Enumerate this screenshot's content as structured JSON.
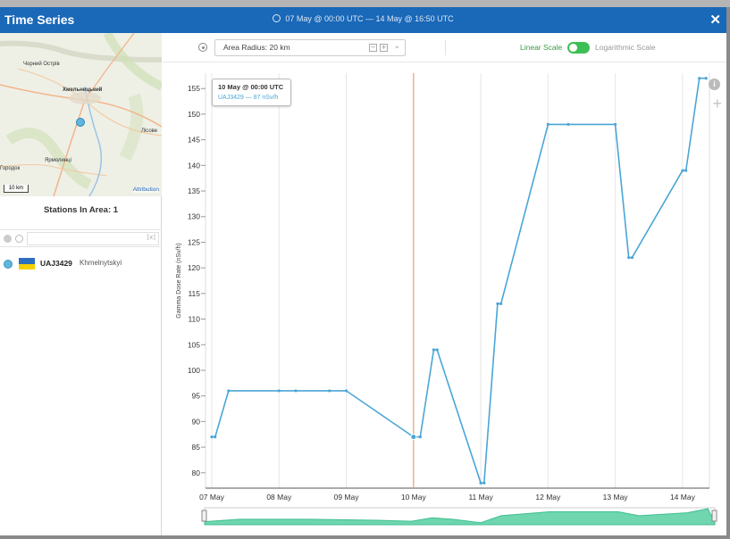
{
  "window": {
    "title": "Time Series",
    "time_range": "07 May @ 00:00 UTC  —  14 May @ 16:50 UTC",
    "close_symbol": "✕"
  },
  "map": {
    "labels": [
      "Чорний Острів",
      "Хмельницький",
      "Лісове",
      "Ярмолинці",
      "Городок"
    ],
    "scale": "10 km",
    "attribution": "Attribution"
  },
  "stations": {
    "title": "Stations In Area: 1",
    "clear_symbol": "[x]",
    "items": [
      {
        "id": "UAJ3429",
        "city": "Khmelnytskyi"
      }
    ]
  },
  "controls": {
    "radius_label": "Area Radius: 20 km",
    "linear_label": "Linear Scale",
    "log_label": "Logarithmic Scale",
    "linear_active": true
  },
  "tooltip": {
    "date": "10 May @ 00:00 UTC",
    "station": "UAJ3429",
    "value": "87 nSv/h"
  },
  "colors": {
    "header": "#1a68b8",
    "series": "#4aa6d6",
    "cursor": "#f0a074",
    "navigator": "#6fd6b0",
    "toggle": "#3ebf55"
  },
  "chart_data": {
    "type": "line",
    "ylabel": "Gamma Dose Rate (nSv/h)",
    "xlabel": "",
    "ylim": [
      77,
      158
    ],
    "yticks": [
      80,
      85,
      90,
      95,
      100,
      105,
      110,
      115,
      120,
      125,
      130,
      135,
      140,
      145,
      150,
      155
    ],
    "xticks": [
      {
        "label": "07 May",
        "day": 0
      },
      {
        "label": "08 May",
        "day": 1
      },
      {
        "label": "09 May",
        "day": 2
      },
      {
        "label": "10 May",
        "day": 3
      },
      {
        "label": "11 May",
        "day": 4
      },
      {
        "label": "12 May",
        "day": 5
      },
      {
        "label": "13 May",
        "day": 6
      },
      {
        "label": "14 May",
        "day": 7
      }
    ],
    "xlim": [
      0,
      7.4
    ],
    "cursor_day": 3,
    "series": [
      {
        "name": "UAJ3429",
        "points": [
          [
            0.0,
            87
          ],
          [
            0.05,
            87
          ],
          [
            0.25,
            96
          ],
          [
            1.0,
            96
          ],
          [
            1.25,
            96
          ],
          [
            1.75,
            96
          ],
          [
            2.0,
            96
          ],
          [
            3.0,
            87
          ],
          [
            3.1,
            87
          ],
          [
            3.3,
            104
          ],
          [
            3.35,
            104
          ],
          [
            4.0,
            78
          ],
          [
            4.05,
            78
          ],
          [
            4.25,
            113
          ],
          [
            4.3,
            113
          ],
          [
            5.0,
            148
          ],
          [
            5.3,
            148
          ],
          [
            6.0,
            148
          ],
          [
            6.2,
            122
          ],
          [
            6.25,
            122
          ],
          [
            7.0,
            139
          ],
          [
            7.05,
            139
          ],
          [
            7.25,
            157
          ],
          [
            7.35,
            157
          ]
        ]
      }
    ],
    "navigator": {
      "values": [
        [
          0.0,
          0.3
        ],
        [
          0.5,
          0.55
        ],
        [
          1.5,
          0.55
        ],
        [
          2.5,
          0.45
        ],
        [
          3.0,
          0.35
        ],
        [
          3.3,
          0.7
        ],
        [
          3.6,
          0.55
        ],
        [
          4.0,
          0.2
        ],
        [
          4.3,
          0.9
        ],
        [
          5.0,
          1.3
        ],
        [
          6.0,
          1.3
        ],
        [
          6.3,
          0.9
        ],
        [
          7.0,
          1.2
        ],
        [
          7.3,
          1.6
        ],
        [
          7.4,
          0.2
        ]
      ]
    }
  }
}
